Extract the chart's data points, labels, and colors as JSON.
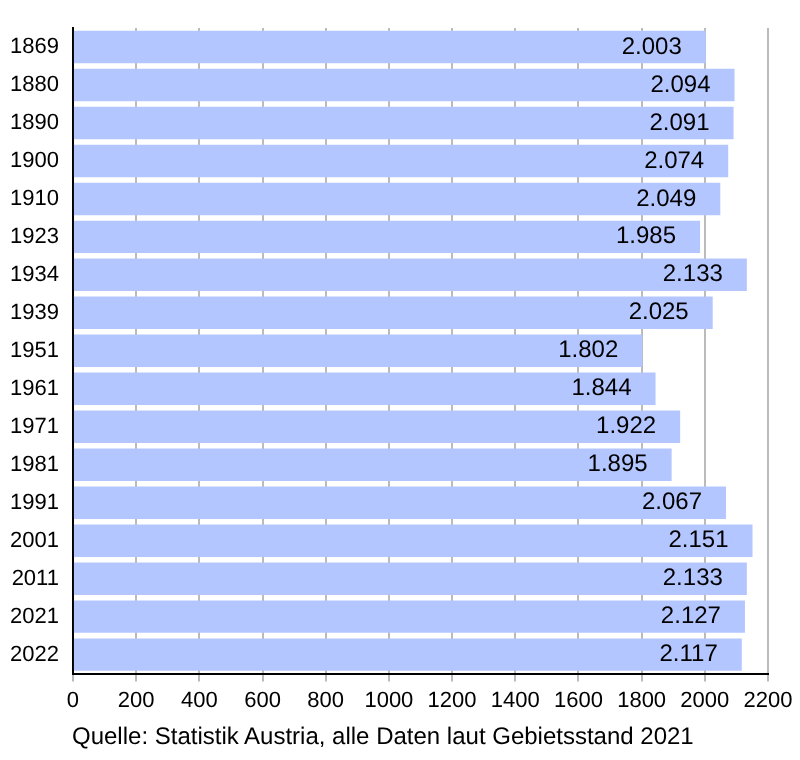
{
  "chart_data": {
    "type": "bar",
    "orientation": "horizontal",
    "categories": [
      "1869",
      "1880",
      "1890",
      "1900",
      "1910",
      "1923",
      "1934",
      "1939",
      "1951",
      "1961",
      "1971",
      "1981",
      "1991",
      "2001",
      "2011",
      "2021",
      "2022"
    ],
    "values": [
      2003,
      2094,
      2091,
      2074,
      2049,
      1985,
      2133,
      2025,
      1802,
      1844,
      1922,
      1895,
      2067,
      2151,
      2133,
      2127,
      2117
    ],
    "value_labels": [
      "2.003",
      "2.094",
      "2.091",
      "2.074",
      "2.049",
      "1.985",
      "2.133",
      "2.025",
      "1.802",
      "1.844",
      "1.922",
      "1.895",
      "2.067",
      "2.151",
      "2.133",
      "2.127",
      "2.117"
    ],
    "color": "#b3c6ff",
    "xlim": [
      0,
      2200
    ],
    "xticks": [
      0,
      200,
      400,
      600,
      800,
      1000,
      1200,
      1400,
      1600,
      1800,
      2000,
      2200
    ],
    "grid": "x",
    "annotations": [
      "Quelle: Statistik Austria, alle Daten laut Gebietsstand 2021"
    ]
  }
}
